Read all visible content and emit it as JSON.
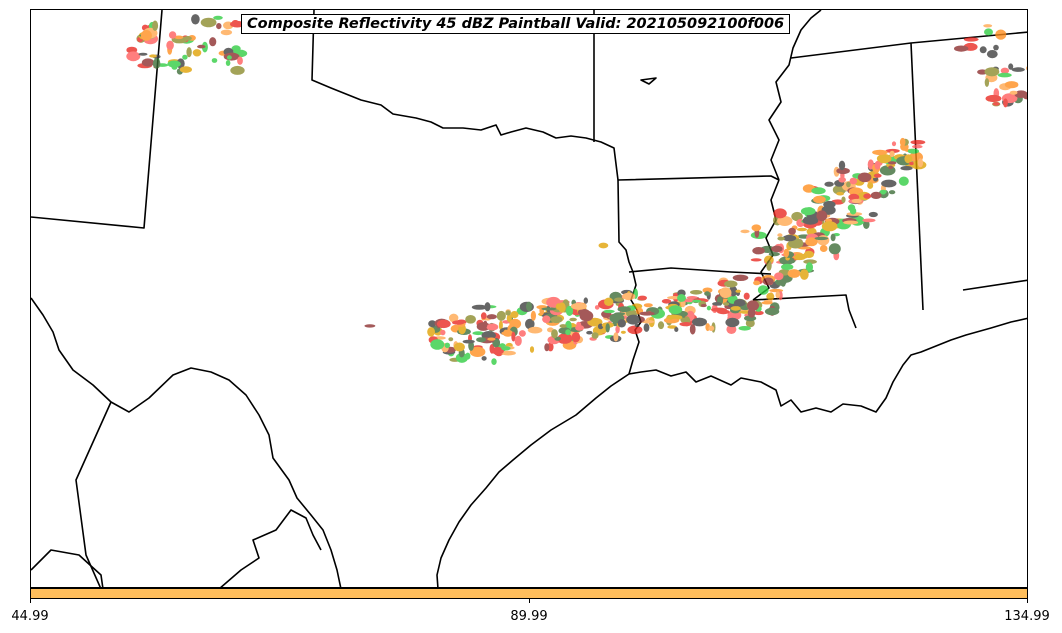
{
  "title": "Composite Reflectivity 45 dBZ Paintball Valid: 202105092100f006",
  "colorbar": {
    "color": "#ffbe5c",
    "ticks": [
      "44.99",
      "89.99",
      "134.99"
    ]
  },
  "palette": {
    "red": "#e8261e",
    "light_red": "#ff5a5a",
    "orange": "#ff8c1a",
    "light_orange": "#ffa64d",
    "green": "#2ecc40",
    "dark_green": "#3a6b35",
    "olive": "#8a8a2a",
    "dark_gray": "#3c3c3c",
    "maroon": "#8b2b2b",
    "gold": "#e0a000"
  }
}
